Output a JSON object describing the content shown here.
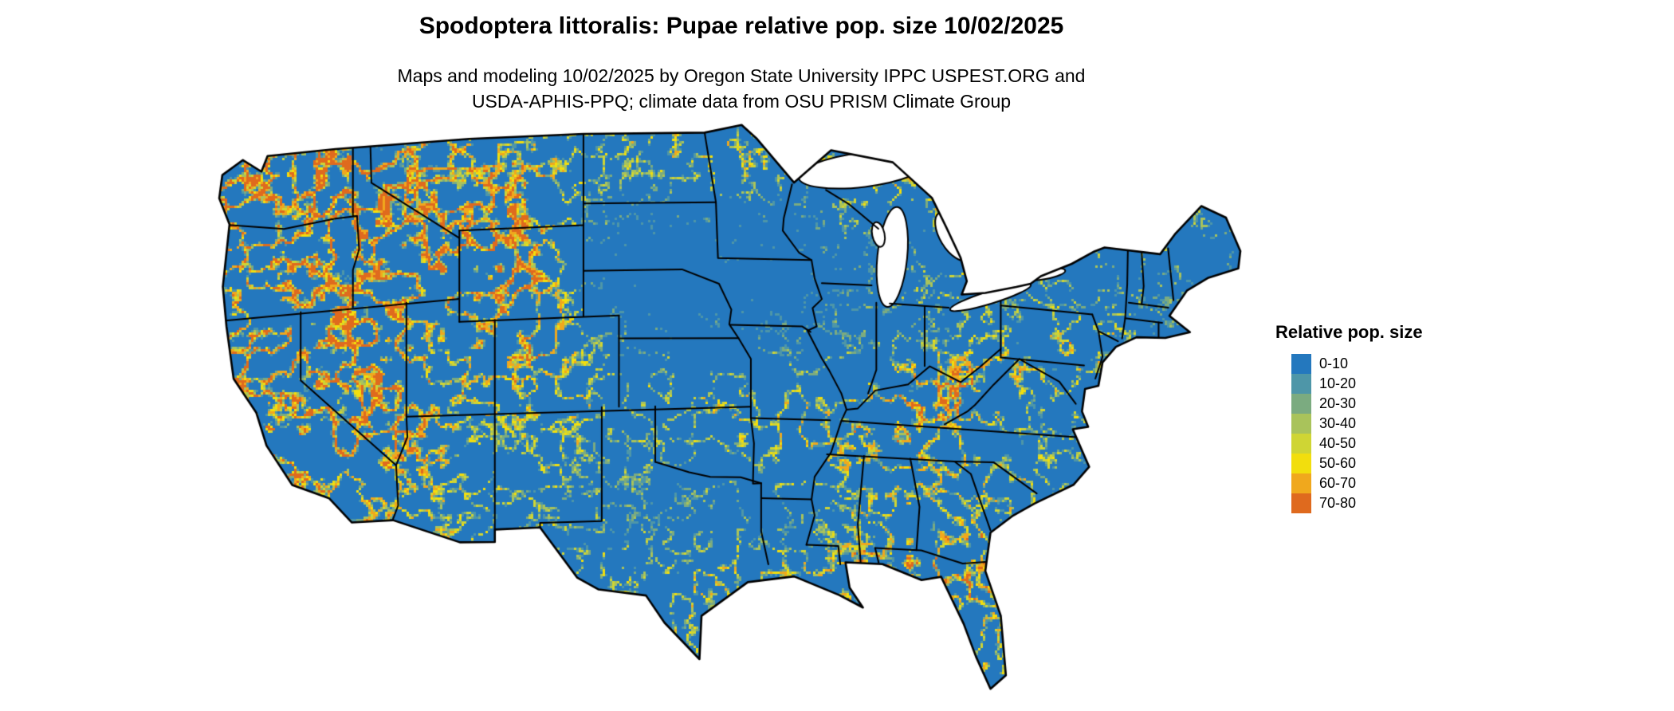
{
  "page": {
    "background": "#ffffff"
  },
  "header": {
    "title": "Spodoptera littoralis: Pupae relative pop. size 10/02/2025",
    "subtitle_line1": "Maps and modeling 10/02/2025 by Oregon State University IPPC USPEST.ORG and",
    "subtitle_line2": "USDA-APHIS-PPQ; climate data from OSU PRISM Climate Group"
  },
  "map": {
    "region": "Continental United States",
    "kind": "raster choropleth of relative pupae population size",
    "water_color": "#ffffff",
    "boundary_color": "#000000"
  },
  "legend": {
    "title": "Relative pop. size",
    "items": [
      {
        "label": "0-10",
        "color": "#2478BE"
      },
      {
        "label": "10-20",
        "color": "#4E96A8"
      },
      {
        "label": "20-30",
        "color": "#7BAB80"
      },
      {
        "label": "30-40",
        "color": "#A9C35B"
      },
      {
        "label": "40-50",
        "color": "#CFD534"
      },
      {
        "label": "50-60",
        "color": "#F2DE0D"
      },
      {
        "label": "60-70",
        "color": "#F0A81D"
      },
      {
        "label": "70-80",
        "color": "#DF6A1E"
      }
    ]
  }
}
